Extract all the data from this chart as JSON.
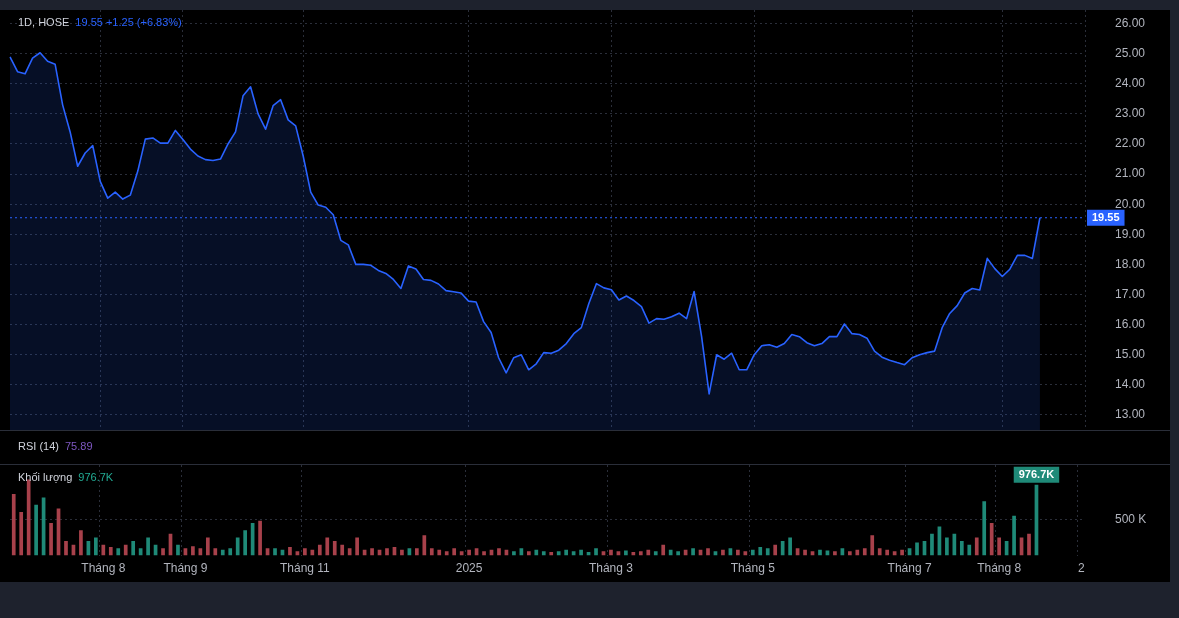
{
  "chart_data": [
    {
      "type": "area",
      "title": "1D, HOSE",
      "subtitle": "19.55 +1.25 (+6.83%)",
      "annotations": [
        "RSI (14)",
        "75.89"
      ],
      "categories": [
        null,
        null,
        null,
        null,
        null,
        null,
        null,
        null,
        null,
        null,
        null,
        null,
        null,
        null,
        null,
        null,
        null,
        null,
        null,
        null,
        null,
        null,
        null,
        null,
        null,
        null,
        null,
        null,
        null,
        null,
        null,
        null,
        null,
        null,
        null,
        null,
        null,
        null,
        null,
        null,
        null,
        null,
        null,
        null,
        null,
        null,
        null,
        null,
        null,
        null,
        null,
        null,
        null,
        null,
        null,
        null,
        null,
        null,
        null,
        null,
        null,
        null,
        null,
        null,
        null,
        null,
        null,
        null,
        null,
        null,
        null,
        null,
        null,
        null,
        null,
        null,
        null,
        null,
        null,
        null,
        null,
        null,
        null,
        null,
        null,
        null,
        null,
        null,
        null,
        null,
        null,
        null,
        null,
        null,
        null,
        null,
        null,
        null,
        null,
        null,
        null,
        null,
        null,
        null,
        null,
        null,
        null,
        null,
        null,
        null,
        null,
        null,
        null,
        null,
        null,
        null,
        null,
        null,
        null,
        null,
        null,
        null,
        null,
        null,
        null,
        null,
        null,
        null,
        null,
        null,
        null,
        null,
        null,
        null,
        null,
        null,
        null,
        null,
        null,
        null,
        null,
        null,
        null,
        null
      ],
      "series": [
        {
          "color": "#2962ff",
          "values": [
            24.89,
            24.4,
            24.33,
            24.85,
            25.03,
            24.75,
            24.65,
            23.3,
            22.4,
            21.26,
            21.7,
            21.95,
            20.76,
            20.2,
            20.4,
            20.17,
            20.3,
            21.1,
            22.16,
            22.2,
            22.03,
            22.03,
            22.45,
            22.15,
            21.83,
            21.6,
            21.48,
            21.45,
            21.5,
            22.0,
            22.4,
            23.6,
            23.9,
            23.0,
            22.49,
            23.27,
            23.47,
            22.8,
            22.6,
            21.6,
            20.4,
            19.97,
            19.9,
            19.65,
            18.8,
            18.65,
            18.0,
            18.0,
            17.97,
            17.8,
            17.7,
            17.5,
            17.2,
            17.95,
            17.85,
            17.5,
            17.47,
            17.35,
            17.13,
            17.09,
            17.05,
            16.78,
            16.75,
            16.1,
            15.74,
            14.9,
            14.4,
            14.9,
            15.0,
            14.5,
            14.7,
            15.07,
            15.05,
            15.15,
            15.37,
            15.7,
            15.9,
            16.7,
            17.36,
            17.22,
            17.16,
            16.82,
            16.95,
            16.8,
            16.6,
            16.05,
            16.2,
            16.18,
            16.26,
            16.38,
            16.2,
            17.1,
            15.6,
            13.7,
            15.0,
            14.85,
            15.05,
            14.5,
            14.5,
            15.0,
            15.3,
            15.33,
            15.25,
            15.37,
            15.67,
            15.6,
            15.4,
            15.3,
            15.37,
            15.6,
            15.6,
            16.02,
            15.7,
            15.67,
            15.55,
            15.12,
            14.92,
            14.82,
            14.74,
            14.67,
            14.9,
            15.0,
            15.07,
            15.12,
            15.9,
            16.37,
            16.63,
            17.05,
            17.2,
            17.15,
            18.2,
            17.86,
            17.6,
            17.84,
            18.3,
            18.3,
            18.2,
            19.55,
            null,
            null,
            null,
            null,
            null,
            null
          ]
        }
      ],
      "ylim": [
        12.5,
        26.45
      ],
      "yticks": [
        {
          "value": 13,
          "label": "13.00"
        },
        {
          "value": 14,
          "label": "14.00"
        },
        {
          "value": 15,
          "label": "15.00"
        },
        {
          "value": 16,
          "label": "16.00"
        },
        {
          "value": 17,
          "label": "17.00"
        },
        {
          "value": 18,
          "label": "18.00"
        },
        {
          "value": 19,
          "label": "19.00"
        },
        {
          "value": 20,
          "label": "20.00"
        },
        {
          "value": 21,
          "label": "21.00"
        },
        {
          "value": 22,
          "label": "22.00"
        },
        {
          "value": 23,
          "label": "23.00"
        },
        {
          "value": 24,
          "label": "24.00"
        },
        {
          "value": 25,
          "label": "25.00"
        },
        {
          "value": 26,
          "label": "26.00"
        }
      ],
      "ref_lines": [
        {
          "axis": "y",
          "value": 19.55,
          "label": "19.55",
          "color": "#2962ff",
          "line_style": "dotted"
        }
      ],
      "grid": true,
      "legend": false,
      "marker": "none",
      "line_style": "solid",
      "tick_labels": "y"
    },
    {
      "type": "bar",
      "title": "Khối lượng",
      "subtitle": "976.7K",
      "categories": [
        null,
        null,
        null,
        null,
        null,
        null,
        null,
        null,
        null,
        null,
        null,
        null,
        "Tháng 8",
        null,
        null,
        null,
        null,
        null,
        null,
        null,
        null,
        null,
        null,
        "Tháng 9",
        null,
        null,
        null,
        null,
        null,
        null,
        null,
        null,
        null,
        null,
        null,
        null,
        null,
        null,
        null,
        "Tháng 11",
        null,
        null,
        null,
        null,
        null,
        null,
        null,
        null,
        null,
        null,
        null,
        null,
        null,
        null,
        null,
        null,
        null,
        null,
        null,
        null,
        null,
        "2025",
        null,
        null,
        null,
        null,
        null,
        null,
        null,
        null,
        null,
        null,
        null,
        null,
        null,
        null,
        null,
        null,
        null,
        null,
        "Tháng 3",
        null,
        null,
        null,
        null,
        null,
        null,
        null,
        null,
        null,
        null,
        null,
        null,
        null,
        null,
        null,
        null,
        null,
        null,
        "Tháng 5",
        null,
        null,
        null,
        null,
        null,
        null,
        null,
        null,
        null,
        null,
        null,
        null,
        null,
        null,
        null,
        null,
        null,
        null,
        null,
        null,
        "Tháng 7",
        null,
        null,
        null,
        null,
        null,
        null,
        null,
        null,
        null,
        null,
        null,
        "Tháng 8",
        null,
        null,
        null,
        null,
        null,
        null,
        null,
        null,
        null,
        null,
        "2"
      ],
      "values": [
        850,
        600,
        1050,
        700,
        800,
        450,
        650,
        200,
        150,
        350,
        200,
        250,
        150,
        120,
        100,
        150,
        200,
        100,
        250,
        150,
        100,
        300,
        150,
        100,
        130,
        100,
        250,
        100,
        80,
        100,
        250,
        350,
        450,
        480,
        100,
        100,
        80,
        120,
        60,
        100,
        80,
        150,
        250,
        200,
        150,
        100,
        250,
        80,
        100,
        80,
        100,
        120,
        80,
        100,
        100,
        280,
        100,
        80,
        60,
        100,
        60,
        80,
        100,
        60,
        80,
        100,
        80,
        60,
        100,
        60,
        80,
        60,
        50,
        60,
        80,
        60,
        80,
        50,
        100,
        60,
        80,
        60,
        70,
        50,
        60,
        80,
        60,
        150,
        80,
        60,
        80,
        100,
        80,
        100,
        60,
        80,
        100,
        80,
        60,
        80,
        120,
        100,
        150,
        200,
        250,
        100,
        80,
        60,
        80,
        70,
        60,
        100,
        60,
        80,
        100,
        280,
        100,
        80,
        60,
        80,
        100,
        180,
        200,
        300,
        400,
        250,
        300,
        200,
        150,
        250,
        750,
        450,
        250,
        200,
        550,
        250,
        300,
        976.7,
        null,
        null,
        null,
        null,
        null,
        null
      ],
      "colors": [
        "#a8414b",
        "#a8414b",
        "#a8414b",
        "#1f8a78",
        "#1f8a78",
        "#a8414b",
        "#a8414b",
        "#a8414b",
        "#a8414b",
        "#a8414b",
        "#1f8a78",
        "#1f8a78",
        "#a8414b",
        "#a8414b",
        "#1f8a78",
        "#a8414b",
        "#1f8a78",
        "#1f8a78",
        "#1f8a78",
        "#1f8a78",
        "#a8414b",
        "#a8414b",
        "#1f8a78",
        "#a8414b",
        "#a8414b",
        "#a8414b",
        "#a8414b",
        "#a8414b",
        "#1f8a78",
        "#1f8a78",
        "#1f8a78",
        "#1f8a78",
        "#1f8a78",
        "#a8414b",
        "#a8414b",
        "#1f8a78",
        "#1f8a78",
        "#a8414b",
        "#a8414b",
        "#a8414b",
        "#a8414b",
        "#a8414b",
        "#a8414b",
        "#a8414b",
        "#a8414b",
        "#a8414b",
        "#a8414b",
        "#a8414b",
        "#a8414b",
        "#a8414b",
        "#a8414b",
        "#a8414b",
        "#a8414b",
        "#1f8a78",
        "#a8414b",
        "#a8414b",
        "#a8414b",
        "#a8414b",
        "#a8414b",
        "#a8414b",
        "#a8414b",
        "#a8414b",
        "#a8414b",
        "#a8414b",
        "#a8414b",
        "#a8414b",
        "#a8414b",
        "#1f8a78",
        "#1f8a78",
        "#a8414b",
        "#1f8a78",
        "#1f8a78",
        "#a8414b",
        "#1f8a78",
        "#1f8a78",
        "#1f8a78",
        "#1f8a78",
        "#1f8a78",
        "#1f8a78",
        "#a8414b",
        "#a8414b",
        "#a8414b",
        "#1f8a78",
        "#a8414b",
        "#a8414b",
        "#a8414b",
        "#1f8a78",
        "#a8414b",
        "#1f8a78",
        "#1f8a78",
        "#a8414b",
        "#1f8a78",
        "#a8414b",
        "#a8414b",
        "#1f8a78",
        "#a8414b",
        "#1f8a78",
        "#a8414b",
        "#a8414b",
        "#1f8a78",
        "#1f8a78",
        "#1f8a78",
        "#a8414b",
        "#1f8a78",
        "#1f8a78",
        "#a8414b",
        "#a8414b",
        "#a8414b",
        "#1f8a78",
        "#1f8a78",
        "#a8414b",
        "#1f8a78",
        "#a8414b",
        "#a8414b",
        "#a8414b",
        "#a8414b",
        "#a8414b",
        "#a8414b",
        "#a8414b",
        "#a8414b",
        "#1f8a78",
        "#1f8a78",
        "#1f8a78",
        "#1f8a78",
        "#1f8a78",
        "#1f8a78",
        "#1f8a78",
        "#1f8a78",
        "#1f8a78",
        "#a8414b",
        "#1f8a78",
        "#a8414b",
        "#a8414b",
        "#1f8a78",
        "#1f8a78",
        "#a8414b",
        "#a8414b",
        "#1f8a78",
        "#a8414b",
        "#a8414b",
        "#a8414b",
        "#a8414b",
        "#a8414b",
        "#a8414b"
      ],
      "value_labels": [
        null,
        null,
        null,
        null,
        null,
        null,
        null,
        null,
        null,
        null,
        null,
        null,
        null,
        null,
        null,
        null,
        null,
        null,
        null,
        null,
        null,
        null,
        null,
        null,
        null,
        null,
        null,
        null,
        null,
        null,
        null,
        null,
        null,
        null,
        null,
        null,
        null,
        null,
        null,
        null,
        null,
        null,
        null,
        null,
        null,
        null,
        null,
        null,
        null,
        null,
        null,
        null,
        null,
        null,
        null,
        null,
        null,
        null,
        null,
        null,
        null,
        null,
        null,
        null,
        null,
        null,
        null,
        null,
        null,
        null,
        null,
        null,
        null,
        null,
        null,
        null,
        null,
        null,
        null,
        null,
        null,
        null,
        null,
        null,
        null,
        null,
        null,
        null,
        null,
        null,
        null,
        null,
        null,
        null,
        null,
        null,
        null,
        null,
        null,
        null,
        null,
        null,
        null,
        null,
        null,
        null,
        null,
        null,
        null,
        null,
        null,
        null,
        null,
        null,
        null,
        null,
        null,
        null,
        null,
        null,
        null,
        null,
        null,
        null,
        null,
        null,
        null,
        null,
        null,
        null,
        null,
        null,
        null,
        null,
        null,
        null,
        null,
        "976.7K",
        null,
        null,
        null,
        null,
        null,
        null
      ],
      "ylim": [
        0,
        1250
      ],
      "yticks": [
        {
          "value": 500,
          "label": "500 K"
        }
      ],
      "grid": true,
      "legend": false
    }
  ]
}
